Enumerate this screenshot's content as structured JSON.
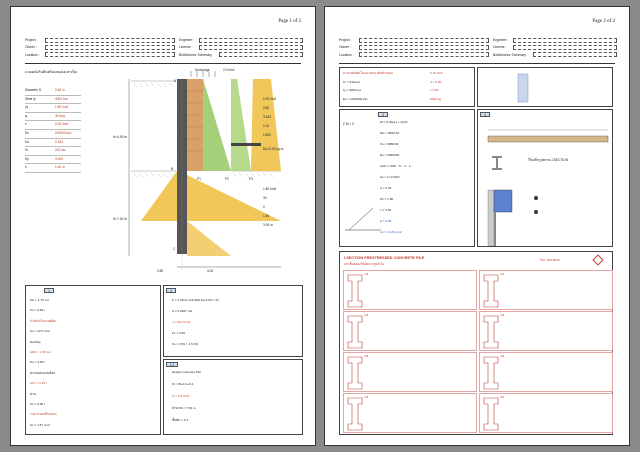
{
  "pages": [
    {
      "page_label": "Page 1 of 2",
      "header": {
        "project": "Project :",
        "owner": "Owner :",
        "location": "Location :",
        "engineer": "Engineer :",
        "license": "License :",
        "bolt": "Bolt/Anchor Summary"
      },
      "section_title": "แบบผนังกันดินพร้อมตอม่อเสาเข็ม",
      "params": [
        {
          "label": "Diameter  D",
          "value": "0.60  m"
        },
        {
          "label": "Steel  fy",
          "value": "4000  ksc"
        },
        {
          "label": "γs",
          "value": "1.80 t/m3"
        },
        {
          "label": "φ",
          "value": "30 deg"
        },
        {
          "label": "c",
          "value": "0.00 t/m2"
        },
        {
          "label": "Es",
          "value": "200000 ksc"
        },
        {
          "label": "Ka",
          "value": "0.333"
        },
        {
          "label": "f'c",
          "value": "240 ksc"
        },
        {
          "label": "Kp",
          "value": "3.000"
        },
        {
          "label": "h",
          "value": "1.00 m"
        }
      ],
      "diagram": {
        "top_label": "A",
        "surcharge": "Surcharge",
        "surcharge_val": "2.0 t/m2",
        "depth_upper": "H=4.00 m",
        "depth_lower": "D=7.00 m",
        "mid_label": "B",
        "bottom_label": "C",
        "p_labels": [
          "P1",
          "P2",
          "P3"
        ],
        "right_vals": [
          "1.00  t/m2",
          "0.80",
          "3.333",
          "0.10",
          "1.800"
        ],
        "right_vals_lower": [
          "1.80 t/m2",
          "30",
          "0",
          "1.50",
          "3.00 m"
        ],
        "moment_label": "M=13.50 kg-m",
        "dims_bottom": [
          "0.60",
          "4.00"
        ]
      },
      "calc_blocks": [
        {
          "id": "1",
          "rows": [
            "Mu = 1.70 t-m",
            "Vu = 2.50 t",
            "กำลังรับโมเมนต์ดัด",
            "As = 12.5 cm2",
            "Ductility",
            "φMn = 1.50 t-m",
            "Pu = 4.50 t",
            "ตรวจสอบแรงเฉือน",
            "φVc = 5.26 t",
            "ผ่าน",
            "Vs = 0.00 t",
            "ระยะห่างเหล็กปลอก",
            "Av = 1.57 cm2"
          ]
        },
        {
          "id": "4",
          "rows": [
            "P = 1.05+5.4+6.00(0.6)+4.00 = 13",
            "A = 0.2827 m2",
            "σ = 46.0 t/m2",
            "Fs = 2.59",
            "Fs = 2.59 > 1.5  OK"
          ]
        },
        {
          "id": "4.1",
          "rows": [
            "Design Concrete Pile",
            "N = 35+0.1+0.1",
            "Q = 1.8 t/m2",
            "คำนวณ = 7.00 m",
            "ชั้นดิน = 0.1"
          ]
        }
      ]
    },
    {
      "page_label": "Page 2 of 2",
      "header": {
        "project": "Project :",
        "owner": "Owner :",
        "location": "Location :",
        "engineer": "Engineer :",
        "license": "License :",
        "bolt": "Bolt/Anchor Summary"
      },
      "top_rows": [
        "ค่าแรงดันดินในแนวนอน (ดินด้านบน)",
        "fc' = 240 ksc",
        "fy = 4000 ksc",
        "Es = 2040000 ksc"
      ],
      "top_values": [
        "2.70 t/m2",
        "4 = 0.90",
        "= 0.81",
        "8622 kg"
      ],
      "formula_block": {
        "sum": "Σ M = 0",
        "rows": [
          "M = (L/2)(q1 + q2)/2",
          "Mu = 6550.33",
          "Vu = 9988.00",
          "Es = 2040000",
          "φMn = 0.85 · f'c · b · a",
          "As = (1-0.6)Ps",
          "a = 2.34",
          "Ps = 1.58",
          "c = 4.36",
          "β = 0.85",
          "As = 13.34 cm2"
        ]
      },
      "beam_title": "ใช้เหล็กรูปพรรณ I-SECTION",
      "pile_table": {
        "title": "I-SECTION PRESTRESSED CONCRETE PILE",
        "subtitle": "เสาเข็มคอนกรีตอัดแรงรูปตัวไอ",
        "tel": "โทร. 093-5529",
        "rows": [
          [
            "I-18",
            "I-22"
          ],
          [
            "I-26",
            "I-30"
          ],
          [
            "I-35",
            "I-40"
          ],
          [
            "I-45",
            "I-50"
          ]
        ]
      }
    }
  ]
}
